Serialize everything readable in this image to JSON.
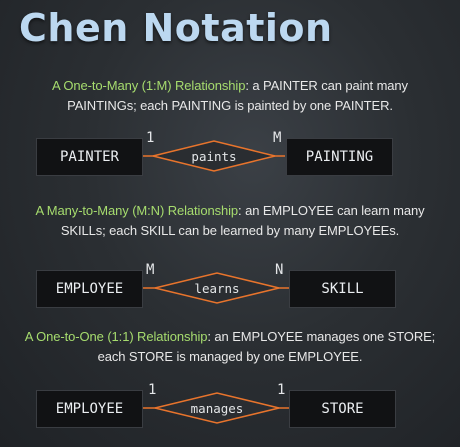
{
  "title": "Chen Notation",
  "sections": [
    {
      "lead": "A One-to-Many (1:M) Relationship",
      "rest1": ": a PAINTER can paint many",
      "line2": "PAINTINGs; each PAINTING is painted by one PAINTER.",
      "left_entity": "PAINTER",
      "right_entity": "PAINTING",
      "relationship": "paints",
      "left_card": "1",
      "right_card": "M"
    },
    {
      "lead": "A Many-to-Many (M:N) Relationship",
      "rest1": ": an EMPLOYEE can learn many",
      "line2": "SKILLs; each SKILL can be learned by many EMPLOYEEs.",
      "left_entity": "EMPLOYEE",
      "right_entity": "SKILL",
      "relationship": "learns",
      "left_card": "M",
      "right_card": "N"
    },
    {
      "lead": "A One-to-One (1:1) Relationship",
      "rest1": ": an EMPLOYEE manages one STORE;",
      "line2": "each STORE is managed by one EMPLOYEE.",
      "left_entity": "EMPLOYEE",
      "right_entity": "STORE",
      "relationship": "manages",
      "left_card": "1",
      "right_card": "1"
    }
  ],
  "colors": {
    "title": "#bcd8f0",
    "lead_text": "#a6dc6e",
    "connector": "#e8742c",
    "entity_fill": "#111214"
  }
}
